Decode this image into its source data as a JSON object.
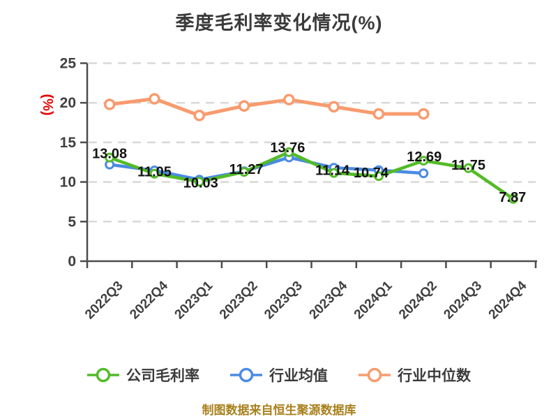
{
  "chart_data": {
    "type": "line",
    "title": "季度毛利率变化情况(%)",
    "ylabel": "(%)",
    "caption": "制图数据来自恒生聚源数据库",
    "categories": [
      "2022Q3",
      "2022Q4",
      "2023Q1",
      "2023Q2",
      "2023Q3",
      "2023Q4",
      "2024Q1",
      "2024Q2",
      "2024Q3",
      "2024Q4"
    ],
    "ylim": [
      0,
      25
    ],
    "yticks": [
      0,
      5,
      10,
      15,
      20,
      25
    ],
    "grid": "horizontal-dashed",
    "legend_position": "bottom",
    "series": [
      {
        "name": "公司毛利率",
        "key": "company-gross-margin",
        "color": "#53bb28",
        "show_labels": true,
        "values": [
          13.08,
          11.05,
          10.03,
          11.27,
          13.76,
          11.14,
          10.74,
          12.69,
          11.75,
          7.87
        ]
      },
      {
        "name": "行业均值",
        "key": "industry-average",
        "color": "#4a8be4",
        "show_labels": false,
        "values": [
          12.2,
          11.45,
          10.3,
          11.35,
          13.1,
          11.8,
          11.5,
          11.1,
          null,
          null
        ]
      },
      {
        "name": "行业中位数",
        "key": "industry-median",
        "color": "#f89b6e",
        "show_labels": false,
        "values": [
          19.8,
          20.5,
          18.4,
          19.6,
          20.4,
          19.5,
          18.6,
          18.6,
          null,
          null
        ]
      }
    ]
  },
  "style": {
    "axis_color": "#4c4c4c",
    "grid_color": "#d8d8d8",
    "tick_label_color": "#3f3f3f",
    "value_label_color": "#141414",
    "title_color": "#3a3a3a",
    "ylabel_color": "#e50000",
    "caption_color": "#a9801d",
    "legend_text_color": "#3c3c3c",
    "marker_fill": "#ffffff"
  }
}
